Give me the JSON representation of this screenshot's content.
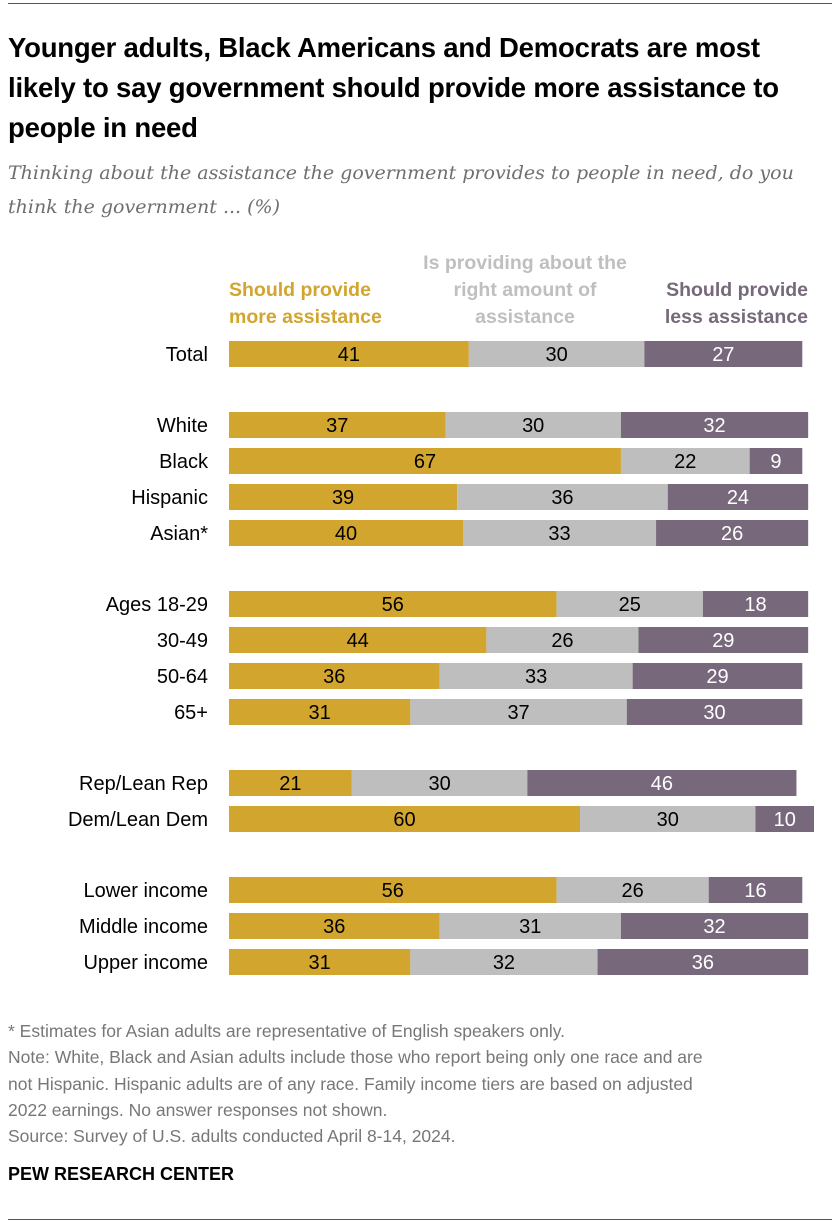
{
  "title": "Younger adults, Black Americans and Democrats are most likely to say government should provide more assistance to people in need",
  "subtitle": "Thinking about the assistance the government provides to people in need, do you think the government ... (%)",
  "notes": [
    "* Estimates for Asian adults are representative of English speakers only.",
    "Note: White, Black and Asian adults include those who report being only one race and are",
    "not Hispanic. Hispanic adults are of any race. Family income tiers are based on adjusted",
    "2022 earnings. No answer responses not shown.",
    "Source: Survey of U.S. adults conducted April 8-14, 2024."
  ],
  "brand": "PEW RESEARCH CENTER",
  "chart_data": {
    "type": "bar",
    "orientation": "horizontal",
    "stacked": true,
    "title": "Younger adults, Black Americans and Democrats are most likely to say government should provide more assistance to people in need",
    "legend_placement": "top",
    "colors": [
      "#D2A52F",
      "#BEBEBE",
      "#77697B"
    ],
    "legend_text_colors": [
      "#D2A52F",
      "#BFBFBF",
      "#77697B"
    ],
    "categories": [
      "Total",
      "White",
      "Black",
      "Hispanic",
      "Asian*",
      "Ages 18-29",
      "30-49",
      "50-64",
      "65+",
      "Rep/Lean Rep",
      "Dem/Lean Dem",
      "Lower income",
      "Middle income",
      "Upper income"
    ],
    "groups": [
      [
        0
      ],
      [
        1,
        2,
        3,
        4
      ],
      [
        5,
        6,
        7,
        8
      ],
      [
        9,
        10
      ],
      [
        11,
        12,
        13
      ]
    ],
    "series": [
      {
        "name": "Should provide more assistance",
        "values": [
          41,
          37,
          67,
          39,
          40,
          56,
          44,
          36,
          31,
          21,
          60,
          56,
          36,
          31
        ]
      },
      {
        "name": "Is providing about the right amount of assistance",
        "values": [
          30,
          30,
          22,
          36,
          33,
          25,
          26,
          33,
          37,
          30,
          30,
          26,
          31,
          32
        ]
      },
      {
        "name": "Should provide less assistance",
        "values": [
          27,
          32,
          9,
          24,
          26,
          18,
          29,
          29,
          30,
          46,
          10,
          16,
          32,
          36
        ]
      }
    ]
  }
}
